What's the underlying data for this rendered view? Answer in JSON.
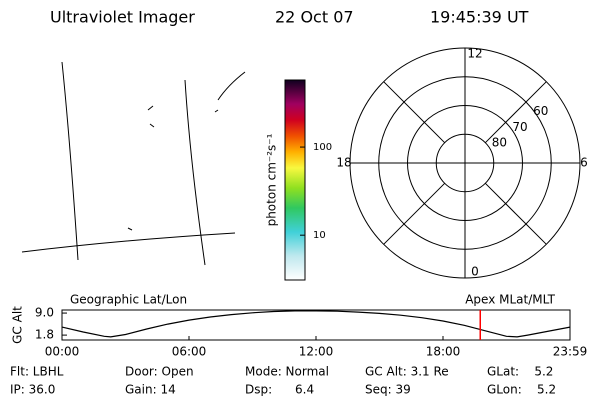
{
  "header": {
    "title": "Ultraviolet Imager",
    "date": "22 Oct 07",
    "time": "19:45:39 UT"
  },
  "colorbar": {
    "label": "photon cm⁻²s⁻¹",
    "clim": [
      3.1,
      577
    ],
    "log": true,
    "ticks": [
      10,
      100
    ]
  },
  "polar": {
    "rlim": [
      50,
      90
    ],
    "rings": [
      80,
      70,
      60
    ],
    "mlt_ticks": [
      0,
      6,
      12,
      18
    ]
  },
  "chart_data": {
    "type": "line",
    "title_left": "Geographic Lat/Lon",
    "title_right": "Apex MLat/MLT",
    "ylabel": "GC Alt",
    "x": [
      0,
      1,
      2,
      2.3,
      3,
      4,
      5,
      6,
      7,
      8,
      9,
      10,
      11,
      11.5,
      12,
      13,
      14,
      15,
      16,
      17,
      18,
      19,
      20,
      21,
      21.5,
      22,
      23,
      24
    ],
    "values": [
      4.4,
      2.8,
      1.4,
      1.2,
      2.0,
      3.8,
      5.4,
      6.7,
      7.7,
      8.5,
      9.1,
      9.5,
      9.7,
      9.7,
      9.7,
      9.6,
      9.3,
      8.9,
      8.3,
      7.5,
      6.4,
      5.0,
      3.2,
      1.4,
      1.2,
      1.8,
      3.1,
      4.4
    ],
    "color": "#000000",
    "xlim": [
      0,
      24
    ],
    "ylim": [
      0.2,
      10
    ],
    "xticks": [
      {
        "value": 0,
        "label": "00:00"
      },
      {
        "value": 6,
        "label": "06:00"
      },
      {
        "value": 12,
        "label": "12:00"
      },
      {
        "value": 18,
        "label": "18:00"
      },
      {
        "value": 24,
        "label": "23:59"
      }
    ],
    "yticks": [
      {
        "value": 1.8,
        "label": "1.8"
      },
      {
        "value": 9,
        "label": "9.0"
      }
    ],
    "marker_x": 19.76,
    "marker_color": "#ff0000"
  },
  "info": [
    [
      "Flt: LBHL",
      "IP: 36.0"
    ],
    [
      "Door: Open",
      "Gain: 14"
    ],
    [
      "Mode: Normal",
      "Dsp:      6.4"
    ],
    [
      "GC Alt: 3.1 Re",
      "Seq: 39"
    ],
    [
      "GLat:    5.2",
      "GLon:    5.2"
    ]
  ]
}
